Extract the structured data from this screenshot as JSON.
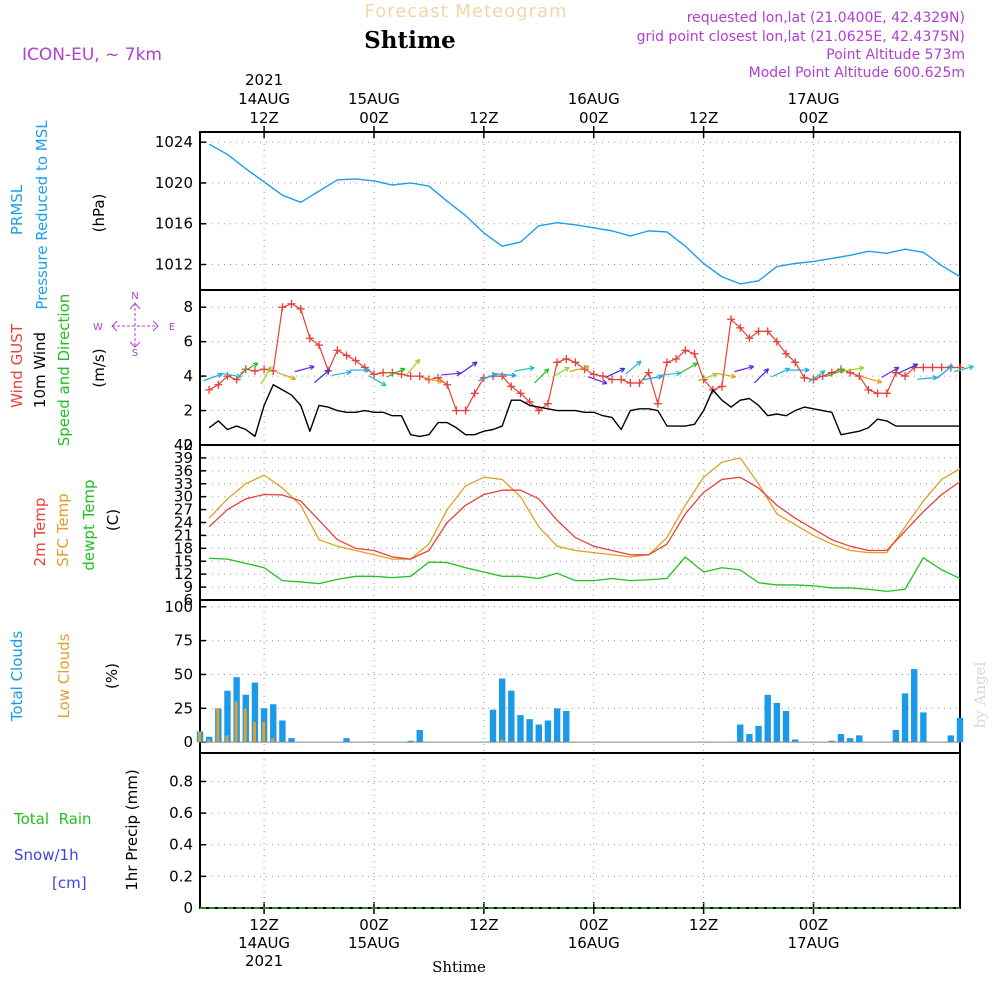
{
  "header": {
    "model": "ICON-EU,  ~ 7km",
    "product": "Forecast Meteogram",
    "location": "Shtime",
    "requested": "requested lon,lat (21.0400E, 42.4329N)",
    "grid": "grid point closest lon,lat (21.0625E, 42.4375N)",
    "altitude": "Point Altitude 573m",
    "model_altitude": "Model Point Altitude 600.625m",
    "watermark": "by Angel",
    "footer_location": "Shtime"
  },
  "colors": {
    "pressure": "#1aa0e8",
    "gust": "#e8403a",
    "wind": "#000000",
    "temp": "#e8403a",
    "sfc_temp": "#e0a020",
    "dewpt": "#22c022",
    "total_clouds": "#1a9ae8",
    "low_clouds": "#e0a030",
    "rain": "#22c022",
    "snow": "#4040e0",
    "meta": "#b040d0"
  },
  "time_axis": {
    "top_labels": [
      {
        "lines": [
          "2021",
          "14AUG",
          "12Z"
        ]
      },
      {
        "lines": [
          "15AUG",
          "00Z"
        ]
      },
      {
        "lines": [
          "12Z"
        ]
      },
      {
        "lines": [
          "16AUG",
          "00Z"
        ]
      },
      {
        "lines": [
          "12Z"
        ]
      },
      {
        "lines": [
          "17AUG",
          "00Z"
        ]
      }
    ],
    "bottom_labels": [
      {
        "lines": [
          "12Z",
          "14AUG",
          "2021"
        ]
      },
      {
        "lines": [
          "00Z",
          "15AUG"
        ]
      },
      {
        "lines": [
          "12Z"
        ]
      },
      {
        "lines": [
          "00Z",
          "16AUG"
        ]
      },
      {
        "lines": [
          "12Z"
        ]
      },
      {
        "lines": [
          "00Z",
          "17AUG"
        ]
      }
    ],
    "tick_hours": [
      12,
      24,
      36,
      48,
      60,
      72
    ]
  },
  "panel_labels": {
    "pressure": {
      "name1": "PRMSL",
      "name2": "Pressure Reduced to MSL",
      "unit": "(hPa)"
    },
    "wind": {
      "gust": "Wind GUST",
      "wind": "10m Wind",
      "dir": "Speed and Direction",
      "unit": "(m/s)",
      "compass_n": "N",
      "compass_s": "S",
      "compass_w": "W",
      "compass_e": "E"
    },
    "temp": {
      "t2m": "2m Temp",
      "sfc": "SFC Temp",
      "dew": "dewpt Temp",
      "unit": "(C)"
    },
    "clouds": {
      "total": "Total Clouds",
      "low": "Low Clouds",
      "unit": "(%)"
    },
    "precip": {
      "rain": "Total  Rain",
      "snow": "Snow/1h",
      "cm": "[cm]",
      "unit": "1hr Precip (mm)"
    }
  },
  "chart_data": [
    {
      "type": "line",
      "name": "pressure",
      "y_ticks": [
        1024,
        1020,
        1016,
        1012
      ],
      "ylim": [
        1009.5,
        1025
      ],
      "x_hours": [
        6,
        8,
        10,
        12,
        14,
        16,
        18,
        20,
        22,
        24,
        26,
        28,
        30,
        32,
        34,
        36,
        38,
        40,
        42,
        44,
        46,
        48,
        50,
        52,
        54,
        56,
        58,
        60,
        62,
        64,
        66,
        68,
        70,
        72,
        74,
        76,
        78,
        80,
        82,
        84,
        86,
        88
      ],
      "values": [
        1023.8,
        1022.8,
        1021.4,
        1020.1,
        1018.8,
        1018.1,
        1019.2,
        1020.3,
        1020.4,
        1020.2,
        1019.8,
        1020.0,
        1019.7,
        1018.2,
        1016.8,
        1015.1,
        1013.8,
        1014.2,
        1015.8,
        1016.1,
        1015.9,
        1015.6,
        1015.3,
        1014.8,
        1015.3,
        1015.2,
        1013.8,
        1012.1,
        1010.8,
        1010.1,
        1010.4,
        1011.8,
        1012.1,
        1012.3,
        1012.6,
        1012.9,
        1013.3,
        1013.1,
        1013.5,
        1013.2,
        1011.9,
        1010.8
      ]
    },
    {
      "type": "line",
      "name": "wind",
      "y_ticks": [
        0,
        2,
        4,
        6,
        8
      ],
      "ylim": [
        0,
        9
      ],
      "series": [
        {
          "name": "Wind GUST",
          "x_hours": [
            6,
            7,
            8,
            9,
            10,
            11,
            12,
            13,
            14,
            15,
            16,
            17,
            18,
            19,
            20,
            21,
            22,
            23,
            24,
            25,
            26,
            27,
            28,
            29,
            30,
            31,
            32,
            33,
            34,
            35,
            36,
            37,
            38,
            39,
            40,
            41,
            42,
            43,
            44,
            45,
            46,
            47,
            48,
            49,
            50,
            51,
            52,
            53,
            54,
            55,
            56,
            57,
            58,
            59,
            60,
            61,
            62,
            63,
            64,
            65,
            66,
            67,
            68,
            69,
            70,
            71,
            72,
            73,
            74,
            75,
            76,
            77,
            78,
            79,
            80,
            81,
            82,
            83,
            84,
            85,
            86,
            87,
            88
          ],
          "values": [
            3.2,
            3.5,
            4.0,
            3.8,
            4.4,
            4.3,
            4.4,
            4.3,
            8.0,
            8.2,
            7.9,
            6.2,
            5.8,
            4.3,
            5.5,
            5.2,
            4.9,
            4.5,
            4.1,
            4.2,
            4.2,
            4.1,
            4.0,
            4.0,
            3.8,
            3.9,
            3.5,
            2.0,
            2.0,
            3.0,
            3.9,
            4.0,
            4.0,
            3.4,
            3.0,
            2.5,
            2.0,
            2.4,
            4.8,
            5.0,
            4.8,
            4.4,
            4.1,
            4.0,
            3.8,
            3.8,
            3.6,
            3.6,
            4.2,
            2.4,
            4.8,
            5.0,
            5.5,
            5.3,
            3.8,
            3.2,
            3.4,
            7.3,
            6.8,
            6.2,
            6.6,
            6.6,
            6.0,
            5.3,
            4.8,
            3.9,
            3.8,
            4.0,
            4.2,
            4.4,
            4.2,
            4.0,
            3.2,
            3.0,
            3.0,
            4.2,
            4.0,
            4.5,
            4.5,
            4.5,
            4.5,
            4.5,
            4.5
          ]
        },
        {
          "name": "10m Wind",
          "x_hours": [
            6,
            7,
            8,
            9,
            10,
            11,
            12,
            13,
            14,
            15,
            16,
            17,
            18,
            19,
            20,
            21,
            22,
            23,
            24,
            25,
            26,
            27,
            28,
            29,
            30,
            31,
            32,
            33,
            34,
            35,
            36,
            37,
            38,
            39,
            40,
            41,
            42,
            43,
            44,
            45,
            46,
            47,
            48,
            49,
            50,
            51,
            52,
            53,
            54,
            55,
            56,
            57,
            58,
            59,
            60,
            61,
            62,
            63,
            64,
            65,
            66,
            67,
            68,
            69,
            70,
            71,
            72,
            73,
            74,
            75,
            76,
            77,
            78,
            79,
            80,
            81,
            82,
            83,
            84,
            85,
            86,
            87,
            88
          ],
          "values": [
            1.0,
            1.4,
            0.9,
            1.1,
            0.9,
            0.5,
            2.3,
            3.5,
            3.2,
            2.9,
            2.3,
            0.8,
            2.3,
            2.2,
            2.0,
            1.9,
            1.9,
            2.0,
            1.9,
            1.9,
            1.7,
            1.7,
            0.6,
            0.5,
            0.6,
            1.3,
            1.3,
            1.0,
            0.6,
            0.6,
            0.8,
            0.9,
            1.1,
            2.6,
            2.6,
            2.3,
            2.2,
            2.1,
            2.0,
            2.0,
            2.0,
            1.9,
            1.9,
            1.7,
            1.6,
            0.9,
            2.0,
            2.1,
            2.1,
            2.0,
            1.1,
            1.1,
            1.1,
            1.2,
            2.0,
            3.2,
            2.6,
            2.2,
            2.6,
            2.7,
            2.3,
            1.7,
            1.8,
            1.7,
            2.0,
            2.2,
            2.1,
            2.0,
            1.9,
            0.6,
            0.7,
            0.8,
            1.0,
            1.5,
            1.4,
            1.1,
            1.1,
            1.1,
            1.1,
            1.1,
            1.1,
            1.1,
            1.1
          ]
        }
      ]
    },
    {
      "type": "line",
      "name": "temperature",
      "y_ticks": [
        6,
        9,
        12,
        15,
        18,
        21,
        24,
        27,
        30,
        33,
        36,
        39,
        42
      ],
      "ylim": [
        6,
        42
      ],
      "x_hours": [
        6,
        8,
        10,
        12,
        14,
        16,
        18,
        20,
        22,
        24,
        26,
        28,
        30,
        32,
        34,
        36,
        38,
        40,
        42,
        44,
        46,
        48,
        50,
        52,
        54,
        56,
        58,
        60,
        62,
        64,
        66,
        68,
        70,
        72,
        74,
        76,
        78,
        80,
        82,
        84,
        86,
        88
      ],
      "series": [
        {
          "name": "2m Temp",
          "values": [
            23,
            27,
            29.5,
            30.5,
            30.4,
            29,
            24.5,
            20,
            18,
            17.5,
            16,
            15.5,
            17.5,
            24,
            28,
            30.5,
            31.5,
            31.5,
            29.5,
            24.5,
            20.5,
            18.5,
            17.5,
            16.5,
            16.5,
            19,
            26,
            31,
            34,
            34.5,
            32,
            28,
            25,
            22.5,
            20,
            18.5,
            17.5,
            17.5,
            22,
            26.5,
            30.5,
            33.5
          ]
        },
        {
          "name": "SFC Temp",
          "values": [
            25,
            29.5,
            33,
            35,
            32,
            28,
            20,
            18.5,
            17.5,
            16.5,
            15.5,
            15.5,
            19,
            27,
            32.5,
            34.5,
            34,
            30,
            23,
            18.5,
            17.5,
            17,
            16.5,
            16,
            16.5,
            20.5,
            28,
            34.5,
            38,
            39,
            33,
            26,
            23.5,
            21,
            19,
            17.5,
            17,
            17,
            23,
            29,
            34,
            36.5
          ]
        },
        {
          "name": "dewpt Temp",
          "values": [
            15.7,
            15.5,
            14.5,
            13.5,
            10.5,
            10.2,
            9.8,
            10.8,
            11.5,
            11.5,
            11.2,
            11.5,
            14.8,
            14.7,
            13.5,
            12.5,
            11.5,
            11.5,
            11.0,
            12.2,
            10.5,
            10.5,
            11.0,
            10.5,
            10.7,
            11.0,
            16.0,
            12.5,
            13.5,
            13.0,
            10.0,
            9.5,
            9.5,
            9.3,
            8.8,
            8.8,
            8.5,
            8.0,
            8.5,
            15.8,
            13.0,
            11.0
          ]
        }
      ]
    },
    {
      "type": "bar",
      "name": "clouds",
      "y_ticks": [
        0,
        25,
        50,
        75,
        100
      ],
      "ylim": [
        -8,
        105
      ],
      "x_hours": [
        5,
        6,
        7,
        8,
        9,
        10,
        11,
        12,
        13,
        14,
        15,
        16,
        17,
        18,
        19,
        20,
        21,
        22,
        23,
        24,
        25,
        26,
        27,
        28,
        29,
        30,
        31,
        32,
        33,
        34,
        35,
        36,
        37,
        38,
        39,
        40,
        41,
        42,
        43,
        44,
        45,
        46,
        47,
        48,
        49,
        50,
        51,
        52,
        53,
        54,
        55,
        56,
        57,
        58,
        59,
        60,
        61,
        62,
        63,
        64,
        65,
        66,
        67,
        68,
        69,
        70,
        71,
        72,
        73,
        74,
        75,
        76,
        77,
        78,
        79,
        80,
        81,
        82,
        83,
        84,
        85,
        86,
        87,
        88
      ],
      "series": [
        {
          "name": "Total Clouds",
          "values": [
            8,
            4,
            25,
            38,
            48,
            35,
            44,
            25,
            28,
            16,
            3,
            0,
            0,
            0,
            0,
            0,
            3,
            0,
            0,
            0,
            0,
            0,
            0,
            1,
            9,
            0,
            0,
            0,
            0,
            0,
            0,
            0,
            24,
            47,
            38,
            20,
            17,
            13,
            16,
            25,
            23,
            0,
            0,
            0,
            0,
            0,
            0,
            0,
            0,
            0,
            0,
            0,
            0,
            0,
            0,
            0,
            0,
            0,
            0,
            13,
            6,
            12,
            35,
            29,
            23,
            2,
            0,
            0,
            0,
            1,
            6,
            3,
            5,
            0,
            0,
            0,
            9,
            36,
            54,
            22,
            0,
            0,
            5,
            18
          ]
        },
        {
          "name": "Low Clouds",
          "values": [
            8,
            2,
            25,
            5,
            30,
            25,
            15,
            15,
            3,
            0,
            0,
            0,
            0,
            0,
            0,
            0,
            0,
            0,
            0,
            0,
            0,
            0,
            0,
            0,
            0,
            0,
            0,
            0,
            0,
            0,
            0,
            0,
            0,
            2,
            0,
            0,
            0,
            0,
            0,
            0,
            0,
            0,
            0,
            0,
            0,
            0,
            0,
            0,
            0,
            0,
            0,
            0,
            0,
            0,
            0,
            0,
            0,
            0,
            0,
            0,
            0,
            0,
            0,
            0,
            0,
            0,
            0,
            0,
            0,
            0,
            0,
            0,
            0,
            0,
            0,
            0,
            0,
            0,
            0,
            0,
            0,
            0,
            0,
            0
          ]
        }
      ]
    },
    {
      "type": "line",
      "name": "precipitation",
      "y_ticks": [
        0,
        0.2,
        0.4,
        0.6,
        0.8
      ],
      "ylim": [
        0,
        0.98
      ],
      "x_hours": [
        5,
        88
      ],
      "series": [
        {
          "name": "Total Rain",
          "values": [
            0,
            0
          ]
        },
        {
          "name": "Snow/1h",
          "values": [
            0,
            0
          ]
        }
      ]
    }
  ]
}
